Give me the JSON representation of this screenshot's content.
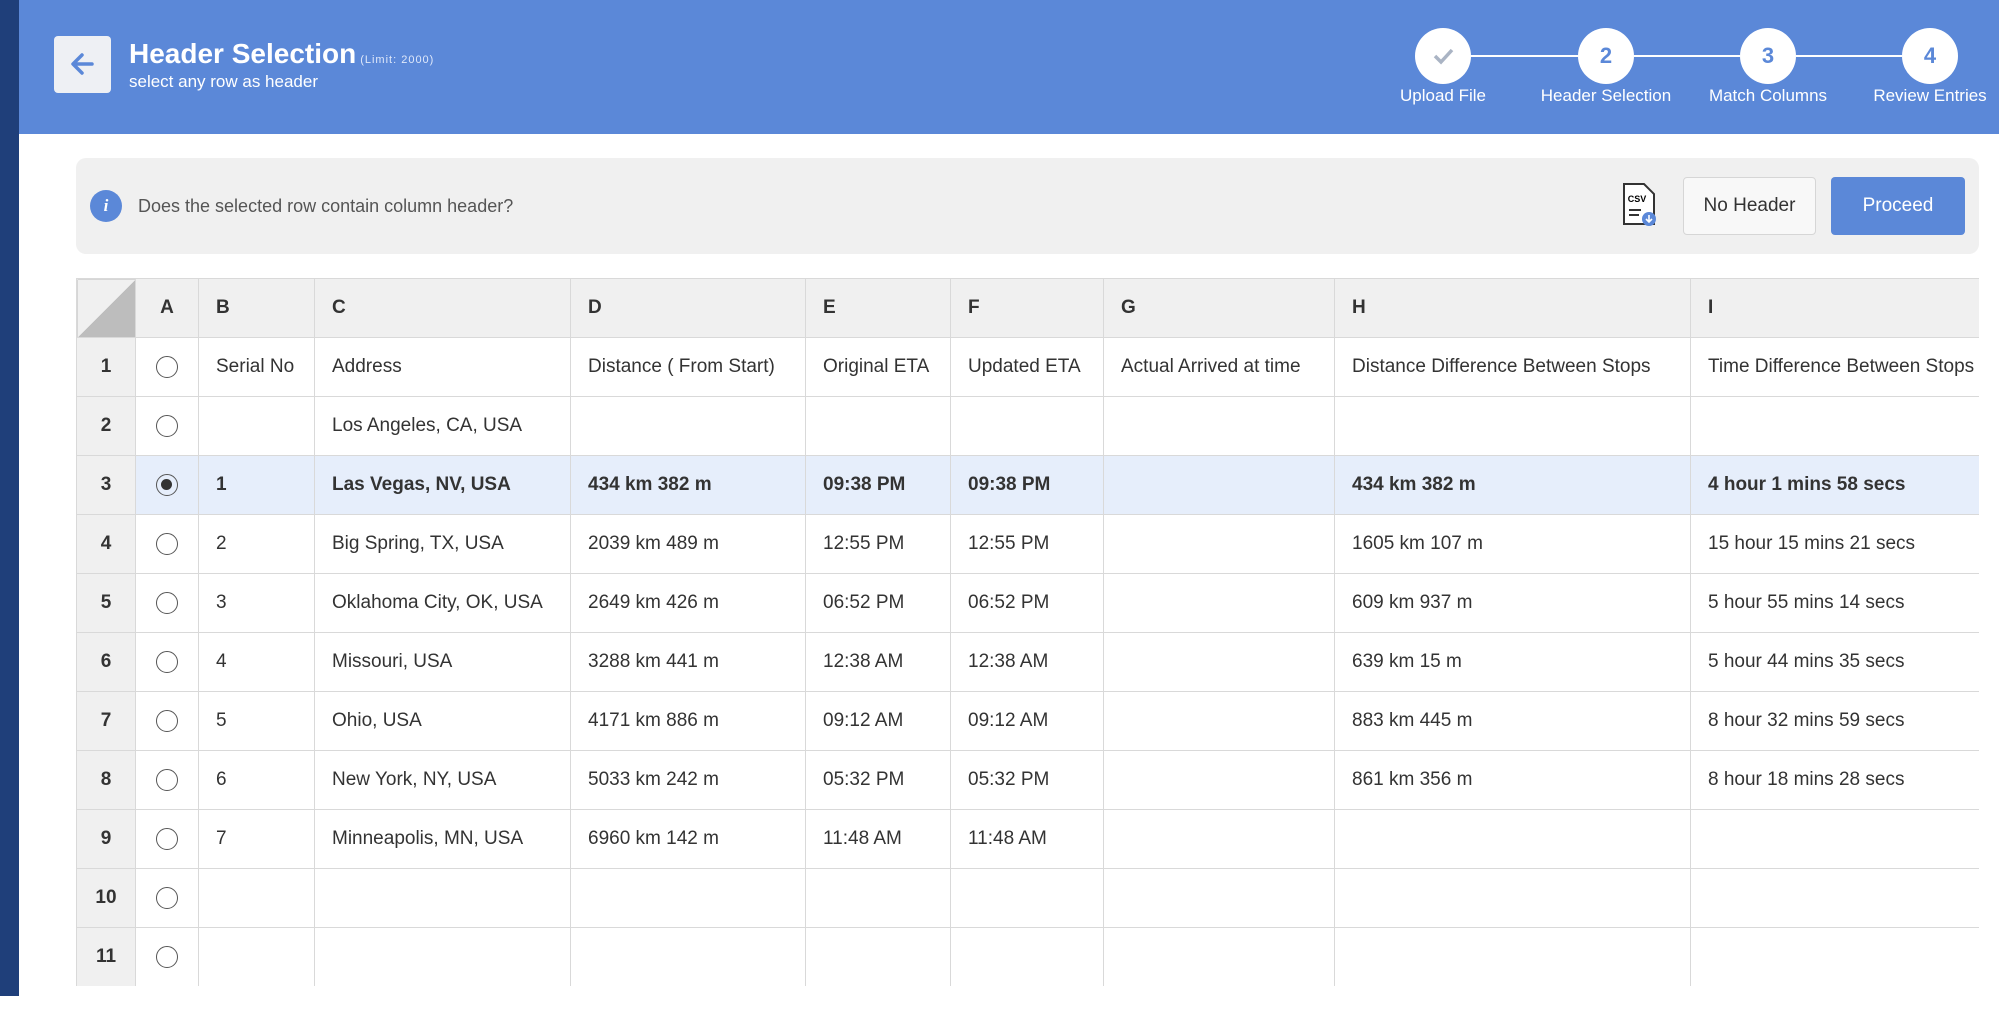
{
  "header": {
    "title": "Header Selection",
    "limit": "(Limit: 2000)",
    "subtitle": "select any row as header"
  },
  "steps": [
    {
      "label": "Upload File",
      "done": true
    },
    {
      "number": "2",
      "label": "Header Selection"
    },
    {
      "number": "3",
      "label": "Match Columns"
    },
    {
      "number": "4",
      "label": "Review Entries"
    }
  ],
  "info": {
    "text": "Does the selected row contain column header?",
    "csv_icon": "CSV",
    "no_header_button": "No Header",
    "proceed_button": "Proceed"
  },
  "table": {
    "columns": [
      "A",
      "B",
      "C",
      "D",
      "E",
      "F",
      "G",
      "H",
      "I"
    ],
    "rows": [
      {
        "number": "1",
        "cells": [
          "Serial No",
          "Address",
          "Distance ( From Start)",
          "Original ETA",
          "Updated ETA",
          "Actual Arrived at time",
          "Distance Difference Between Stops",
          "Time Difference Between Stops"
        ]
      },
      {
        "number": "2",
        "cells": [
          null,
          "Los Angeles, CA, USA",
          null,
          null,
          null,
          null,
          null,
          null
        ]
      },
      {
        "number": "3",
        "selected": true,
        "cells": [
          "1",
          "Las Vegas, NV, USA",
          "434 km 382 m",
          "09:38 PM",
          "09:38 PM",
          null,
          "434 km 382 m",
          "4 hour 1 mins 58 secs"
        ]
      },
      {
        "number": "4",
        "cells": [
          "2",
          "Big Spring, TX, USA",
          "2039 km 489 m",
          "12:55 PM",
          "12:55 PM",
          null,
          "1605 km 107 m",
          "15 hour 15 mins 21 secs"
        ]
      },
      {
        "number": "5",
        "cells": [
          "3",
          "Oklahoma City, OK, USA",
          "2649 km 426 m",
          "06:52 PM",
          "06:52 PM",
          null,
          "609 km 937 m",
          "5 hour 55 mins 14 secs"
        ]
      },
      {
        "number": "6",
        "cells": [
          "4",
          "Missouri, USA",
          "3288 km 441 m",
          "12:38 AM",
          "12:38 AM",
          null,
          "639 km 15 m",
          "5 hour 44 mins 35 secs"
        ]
      },
      {
        "number": "7",
        "cells": [
          "5",
          "Ohio, USA",
          "4171 km 886 m",
          "09:12 AM",
          "09:12 AM",
          null,
          "883 km 445 m",
          "8 hour 32 mins 59 secs"
        ]
      },
      {
        "number": "8",
        "cells": [
          "6",
          "New York, NY, USA",
          "5033 km 242 m",
          "05:32 PM",
          "05:32 PM",
          null,
          "861 km 356 m",
          "8 hour 18 mins 28 secs"
        ]
      },
      {
        "number": "9",
        "cells": [
          "7",
          "Minneapolis, MN, USA",
          "6960 km 142 m",
          "11:48 AM",
          "11:48 AM",
          null,
          null,
          null
        ]
      },
      {
        "number": "10",
        "cells": [
          null,
          null,
          null,
          null,
          null,
          null,
          null,
          null
        ]
      },
      {
        "number": "11",
        "cells": [
          null,
          null,
          null,
          null,
          null,
          null,
          null,
          null
        ]
      }
    ]
  }
}
